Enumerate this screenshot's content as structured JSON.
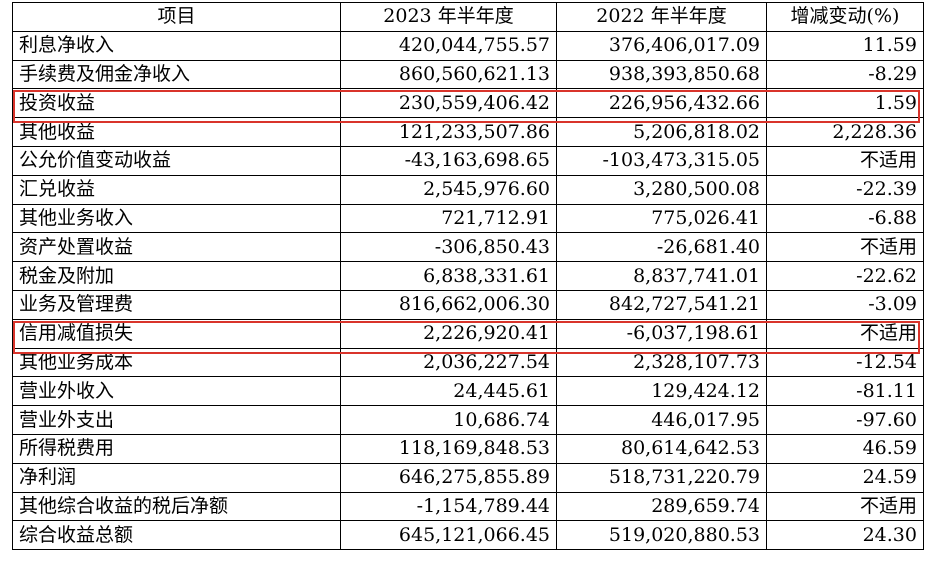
{
  "table": {
    "headers": [
      "项目",
      "2023 年半年度",
      "2022 年半年度",
      "增减变动(%)"
    ],
    "rows": [
      [
        "利息净收入",
        "420,044,755.57",
        "376,406,017.09",
        "11.59"
      ],
      [
        "手续费及佣金净收入",
        "860,560,621.13",
        "938,393,850.68",
        "-8.29"
      ],
      [
        "投资收益",
        "230,559,406.42",
        "226,956,432.66",
        "1.59"
      ],
      [
        "其他收益",
        "121,233,507.86",
        "5,206,818.02",
        "2,228.36"
      ],
      [
        "公允价值变动收益",
        "-43,163,698.65",
        "-103,473,315.05",
        "不适用"
      ],
      [
        "汇兑收益",
        "2,545,976.60",
        "3,280,500.08",
        "-22.39"
      ],
      [
        "其他业务收入",
        "721,712.91",
        "775,026.41",
        "-6.88"
      ],
      [
        "资产处置收益",
        "-306,850.43",
        "-26,681.40",
        "不适用"
      ],
      [
        "税金及附加",
        "6,838,331.61",
        "8,837,741.01",
        "-22.62"
      ],
      [
        "业务及管理费",
        "816,662,006.30",
        "842,727,541.21",
        "-3.09"
      ],
      [
        "信用减值损失",
        "2,226,920.41",
        "-6,037,198.61",
        "不适用"
      ],
      [
        "其他业务成本",
        "2,036,227.54",
        "2,328,107.73",
        "-12.54"
      ],
      [
        "营业外收入",
        "24,445.61",
        "129,424.12",
        "-81.11"
      ],
      [
        "营业外支出",
        "10,686.74",
        "446,017.95",
        "-97.60"
      ],
      [
        "所得税费用",
        "118,169,848.53",
        "80,614,642.53",
        "46.59"
      ],
      [
        "净利润",
        "646,275,855.89",
        "518,731,220.79",
        "24.59"
      ],
      [
        "其他综合收益的税后净额",
        "-1,154,789.44",
        "289,659.74",
        "不适用"
      ],
      [
        "综合收益总额",
        "645,121,066.45",
        "519,020,880.53",
        "24.30"
      ]
    ]
  },
  "highlight_color": "#d9342b"
}
